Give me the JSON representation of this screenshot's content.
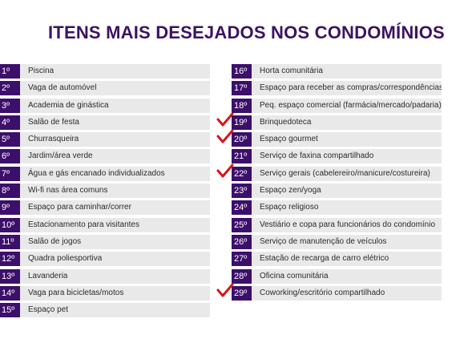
{
  "title": "ITENS MAIS DESEJADOS NOS CONDOMÍNIOS",
  "colors": {
    "title": "#3b1363",
    "rank_bg": "#3c0f6b",
    "row_bg": "#e9e9ea",
    "check": "#d9141b"
  },
  "left": [
    {
      "rank": "1º",
      "label": "Piscina"
    },
    {
      "rank": "2º",
      "label": "Vaga de automóvel"
    },
    {
      "rank": "3º",
      "label": "Academia de ginástica"
    },
    {
      "rank": "4º",
      "label": "Salão de festa"
    },
    {
      "rank": "5º",
      "label": "Churrasqueira"
    },
    {
      "rank": "6º",
      "label": "Jardim/área verde"
    },
    {
      "rank": "7º",
      "label": "Água e gás encanado individualizados"
    },
    {
      "rank": "8º",
      "label": "Wi-fi nas área comuns"
    },
    {
      "rank": "9º",
      "label": "Espaço para caminhar/correr"
    },
    {
      "rank": "10º",
      "label": "Estacionamento para visitantes"
    },
    {
      "rank": "11º",
      "label": "Salão de jogos"
    },
    {
      "rank": "12º",
      "label": "Quadra poliesportiva"
    },
    {
      "rank": "13º",
      "label": "Lavanderia"
    },
    {
      "rank": "14º",
      "label": "Vaga para bicicletas/motos"
    },
    {
      "rank": "15º",
      "label": "Espaço pet"
    }
  ],
  "right": [
    {
      "rank": "16º",
      "label": "Horta comunitária",
      "checked": false
    },
    {
      "rank": "17º",
      "label": "Espaço para receber as compras/correspondências",
      "checked": false
    },
    {
      "rank": "18º",
      "label": "Peq. espaço comercial (farmácia/mercado/padaria)",
      "checked": false
    },
    {
      "rank": "19º",
      "label": "Brinquedoteca",
      "checked": true
    },
    {
      "rank": "20º",
      "label": "Espaço gourmet",
      "checked": true
    },
    {
      "rank": "21º",
      "label": "Serviço de faxina compartilhado",
      "checked": false
    },
    {
      "rank": "22º",
      "label": "Serviço gerais (cabelereiro/manicure/costureira)",
      "checked": true
    },
    {
      "rank": "23º",
      "label": "Espaço zen/yoga",
      "checked": false
    },
    {
      "rank": "24º",
      "label": "Espaço religioso",
      "checked": false
    },
    {
      "rank": "25º",
      "label": "Vestiário e copa para funcionários do condomínio",
      "checked": false
    },
    {
      "rank": "26º",
      "label": "Serviço de manutenção de veículos",
      "checked": false
    },
    {
      "rank": "27º",
      "label": "Estação de recarga de carro elétrico",
      "checked": false
    },
    {
      "rank": "28º",
      "label": "Oficina comunitária",
      "checked": false
    },
    {
      "rank": "29º",
      "label": "Coworking/escritório compartilhado",
      "checked": true
    }
  ]
}
